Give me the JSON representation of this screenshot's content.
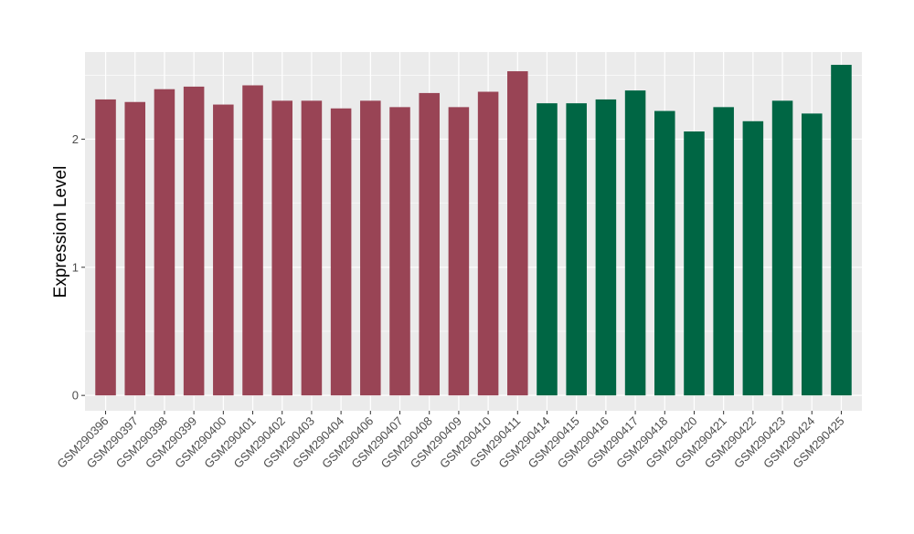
{
  "chart_data": {
    "type": "bar",
    "ylabel": "Expression Level",
    "xlabel": "",
    "ylim": [
      -0.12,
      2.68
    ],
    "yticks": [
      0,
      1,
      2
    ],
    "grid": true,
    "panel_background": "#ebebeb",
    "grid_color": "#ffffff",
    "categories": [
      "GSM290396",
      "GSM290397",
      "GSM290398",
      "GSM290399",
      "GSM290400",
      "GSM290401",
      "GSM290402",
      "GSM290403",
      "GSM290404",
      "GSM290406",
      "GSM290407",
      "GSM290408",
      "GSM290409",
      "GSM290410",
      "GSM290411",
      "GSM290414",
      "GSM290415",
      "GSM290416",
      "GSM290417",
      "GSM290418",
      "GSM290420",
      "GSM290421",
      "GSM290422",
      "GSM290423",
      "GSM290424",
      "GSM290425"
    ],
    "values": [
      2.31,
      2.29,
      2.39,
      2.41,
      2.27,
      2.42,
      2.3,
      2.3,
      2.24,
      2.3,
      2.25,
      2.36,
      2.25,
      2.37,
      2.53,
      2.28,
      2.28,
      2.31,
      2.38,
      2.22,
      2.06,
      2.25,
      2.14,
      2.3,
      2.2,
      2.58
    ],
    "group_index": [
      0,
      0,
      0,
      0,
      0,
      0,
      0,
      0,
      0,
      0,
      0,
      0,
      0,
      0,
      0,
      1,
      1,
      1,
      1,
      1,
      1,
      1,
      1,
      1,
      1,
      1
    ],
    "group_colors": [
      "#994455",
      "#006644"
    ]
  }
}
